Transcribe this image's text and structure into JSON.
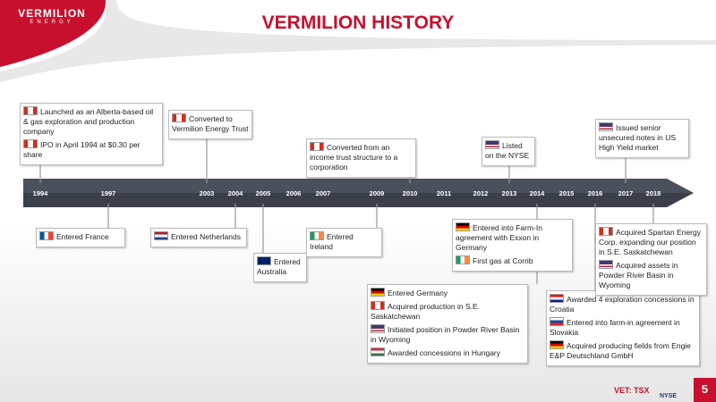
{
  "header": {
    "logo_name": "VERMILION",
    "logo_sub": "ENERGY",
    "title": "VERMILION HISTORY"
  },
  "timeline": {
    "years": [
      "1994",
      "1997",
      "2003",
      "2004",
      "2005",
      "2006",
      "2007",
      "2009",
      "2010",
      "2011",
      "2012",
      "2013",
      "2014",
      "2015",
      "2016",
      "2017",
      "2018"
    ]
  },
  "events": [
    {
      "items": [
        "Launched as an Alberta-based oil & gas exploration and production company",
        "IPO in April 1994 at $0.30 per share"
      ]
    },
    {
      "items": [
        "Converted to Vermilion Energy Trust"
      ]
    },
    {
      "items": [
        "Converted from an income trust structure to a corporation"
      ]
    },
    {
      "items": [
        "Listed on the NYSE"
      ]
    },
    {
      "items": [
        "Issued senior unsecured notes in US High Yield market"
      ]
    },
    {
      "items": [
        "Entered France"
      ]
    },
    {
      "items": [
        "Entered Netherlands"
      ]
    },
    {
      "items": [
        "Entered Australia"
      ]
    },
    {
      "items": [
        "Entered Ireland"
      ]
    },
    {
      "items": [
        "Entered into Farm-In agreement with Exxon in Germany",
        "First gas at Corrib"
      ]
    },
    {
      "items": [
        "Entered Germany",
        "Acquired production in S.E. Saskatchewan",
        "Initiated position in Powder River Basin in Wyoming",
        "Awarded concessions in Hungary"
      ]
    },
    {
      "items": [
        "Awarded 4 exploration concessions in Croatia",
        "Entered into farm-in agreement in Slovakia",
        "Acquired producing fields from Engie E&P Deutschland GmbH"
      ]
    },
    {
      "items": [
        "Acquired Spartan Energy Corp. expanding our position in S.E. Saskatchewan",
        "Acquired assets in Powder River Basin in Wyoming"
      ]
    }
  ],
  "footer": {
    "ticker": "VET: TSX",
    "exchange": "NYSE",
    "page": "5"
  }
}
